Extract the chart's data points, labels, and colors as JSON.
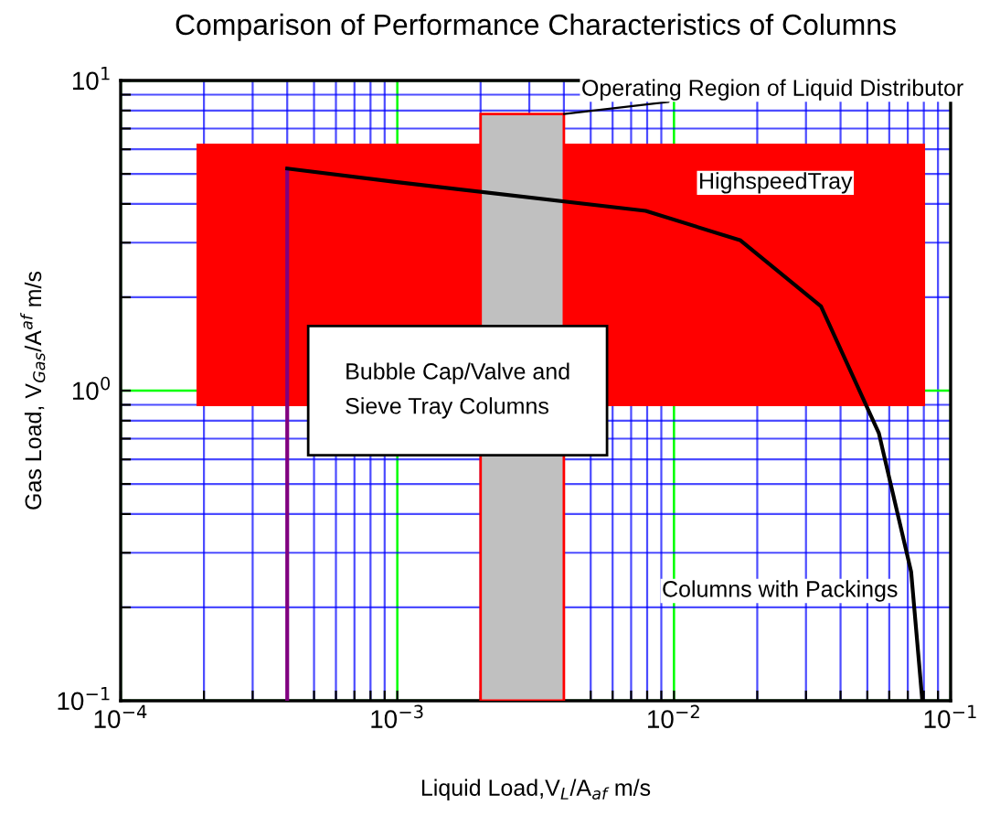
{
  "chart_data": {
    "type": "line",
    "title": "Comparison of Performance Characteristics of Columns",
    "xlabel": "Liquid Load,V$_{L}$/A$_{af}$ m/s",
    "ylabel": "Gas Load, V$_{Gas}$/A$^{af}$ m/s",
    "log": "xy",
    "xlim": [
      0.0001,
      0.1
    ],
    "ylim": [
      0.1,
      10
    ],
    "xticks": [
      {
        "value": 0.0001,
        "label": "10$^{−4}$"
      },
      {
        "value": 0.0002,
        "label": null
      },
      {
        "value": 0.0003,
        "label": null
      },
      {
        "value": 0.0004,
        "label": null
      },
      {
        "value": 0.0005,
        "label": null
      },
      {
        "value": 0.0006,
        "label": null
      },
      {
        "value": 0.0007,
        "label": null
      },
      {
        "value": 0.0008,
        "label": null
      },
      {
        "value": 0.0009,
        "label": null
      },
      {
        "value": 0.001,
        "label": "10$^{−3}$"
      },
      {
        "value": 0.002,
        "label": null
      },
      {
        "value": 0.003,
        "label": null
      },
      {
        "value": 0.004,
        "label": null
      },
      {
        "value": 0.005,
        "label": null
      },
      {
        "value": 0.006,
        "label": null
      },
      {
        "value": 0.007,
        "label": null
      },
      {
        "value": 0.008,
        "label": null
      },
      {
        "value": 0.009,
        "label": null
      },
      {
        "value": 0.01,
        "label": "10$^{−2}$"
      },
      {
        "value": 0.02,
        "label": null
      },
      {
        "value": 0.03,
        "label": null
      },
      {
        "value": 0.04,
        "label": null
      },
      {
        "value": 0.05,
        "label": null
      },
      {
        "value": 0.06,
        "label": null
      },
      {
        "value": 0.07,
        "label": null
      },
      {
        "value": 0.08,
        "label": null
      },
      {
        "value": 0.09,
        "label": null
      },
      {
        "value": 0.1,
        "label": "10$^{−1}$"
      }
    ],
    "yticks": [
      {
        "value": 0.1,
        "label": "10$^{−1}$"
      },
      {
        "value": 0.2,
        "label": null
      },
      {
        "value": 0.3,
        "label": null
      },
      {
        "value": 0.4,
        "label": null
      },
      {
        "value": 0.5,
        "label": null
      },
      {
        "value": 0.6,
        "label": null
      },
      {
        "value": 0.7,
        "label": null
      },
      {
        "value": 0.8,
        "label": null
      },
      {
        "value": 0.9,
        "label": null
      },
      {
        "value": 1,
        "label": "10$^{0}$"
      },
      {
        "value": 2,
        "label": null
      },
      {
        "value": 3,
        "label": null
      },
      {
        "value": 4,
        "label": null
      },
      {
        "value": 5,
        "label": null
      },
      {
        "value": 6,
        "label": null
      },
      {
        "value": 7,
        "label": null
      },
      {
        "value": 8,
        "label": null
      },
      {
        "value": 9,
        "label": null
      },
      {
        "value": 10,
        "label": "10$^{1}$"
      }
    ],
    "grid": true,
    "legend": false,
    "series": [
      {
        "type": "area",
        "color": "#ff0000",
        "x": [
          0.00019,
          0.08
        ],
        "values": [
          null,
          null
        ],
        "lower": [
          0.9,
          0.9
        ],
        "upper": [
          6.2,
          6.2
        ]
      },
      {
        "type": "area",
        "color": "#c0c0c0",
        "x": [
          0.002,
          0.004
        ],
        "values": [
          null,
          null
        ],
        "lower": [
          0.1,
          0.1
        ],
        "upper": [
          7.8,
          7.8
        ]
      },
      {
        "color": "#800080",
        "x": [
          0.0004,
          0.0004
        ],
        "values": [
          0.1,
          5.2
        ]
      },
      {
        "color": "#000000",
        "x": [
          0.0004,
          0.001,
          0.0079,
          0.0174,
          0.034,
          0.055,
          0.072,
          0.079
        ],
        "values": [
          5.2,
          4.7,
          3.8,
          3.05,
          1.87,
          0.73,
          0.26,
          0.1
        ]
      }
    ],
    "annotations": [
      {
        "text": "Operating Region of Liquid Distributor",
        "x": 0.004,
        "y": 7.8
      },
      "HighspeedTray",
      "Bubble Cap/Valve and\nSieve Tray Columns",
      "Columns with Packings"
    ]
  }
}
